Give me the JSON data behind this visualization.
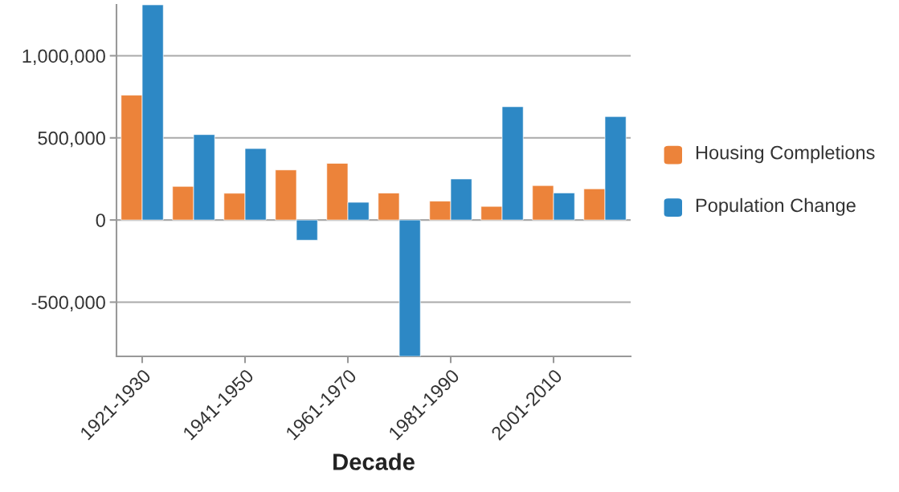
{
  "chart_data": {
    "type": "bar",
    "xlabel": "Decade",
    "categories": [
      "1921-1930",
      null,
      "1941-1950",
      null,
      "1961-1970",
      null,
      "1981-1990",
      null,
      "2001-2010",
      null
    ],
    "series": [
      {
        "name": "Housing Completions",
        "color": "#ec833a",
        "values": [
          760000,
          205000,
          163000,
          305000,
          345000,
          164000,
          115000,
          83000,
          210000,
          190000
        ]
      },
      {
        "name": "Population Change",
        "color": "#2d88c5",
        "values": [
          1310000,
          520000,
          435000,
          -123000,
          108000,
          -830000,
          250000,
          690000,
          165000,
          630000
        ]
      }
    ],
    "ylim": [
      -830000,
      1310000
    ],
    "yticks": [
      {
        "value": -500000,
        "label": "-500,000"
      },
      0,
      {
        "value": 500000,
        "label": "500,000"
      },
      {
        "value": 1000000,
        "label": "1,000,000"
      }
    ],
    "grid": "y",
    "legend": "right"
  }
}
